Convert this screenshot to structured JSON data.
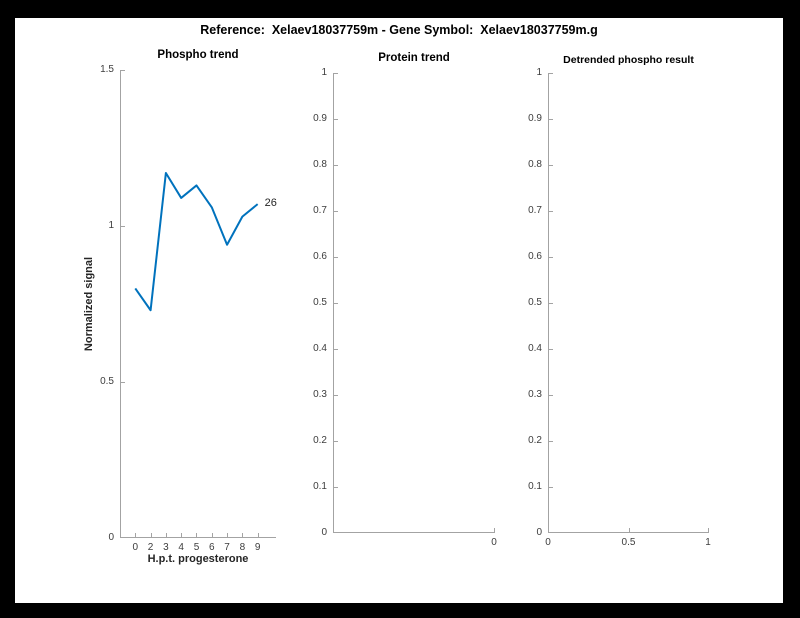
{
  "figure": {
    "title": "Reference:  Xelaev18037759m - Gene Symbol:  Xelaev18037759m.g",
    "background_color": "#ffffff",
    "frame_color": "#000000",
    "axis_color": "#a3a3a3",
    "tick_label_color": "#3d3d3d"
  },
  "chart_data": [
    {
      "type": "line",
      "title": "Phospho trend",
      "xlabel": "H.p.t. progesterone",
      "ylabel": "Normalized signal",
      "x": [
        1,
        2,
        3,
        4,
        5,
        6,
        7,
        8,
        9
      ],
      "xtick_labels": [
        "0",
        "2",
        "3",
        "4",
        "5",
        "6",
        "7",
        "8",
        "9"
      ],
      "values": [
        0.8,
        0.73,
        1.17,
        1.09,
        1.13,
        1.06,
        0.94,
        1.03,
        1.07
      ],
      "xlim": [
        0,
        10.2
      ],
      "ylim": [
        0,
        1.5
      ],
      "yticks": [
        0,
        0.5,
        1,
        1.5
      ],
      "ytick_labels": [
        "0",
        "0.5",
        "1",
        "1.5"
      ],
      "line_color": "#0072BD",
      "grid": false,
      "legend": null,
      "annotation": {
        "text": "26"
      }
    },
    {
      "type": "line",
      "title": "Protein trend",
      "xlabel": "",
      "ylabel": "",
      "x": [],
      "values": [],
      "xlim": [
        -1,
        0
      ],
      "xticks": [
        0
      ],
      "xtick_labels": [
        "0"
      ],
      "ylim": [
        0,
        1
      ],
      "yticks": [
        0,
        0.1,
        0.2,
        0.3,
        0.4,
        0.5,
        0.6,
        0.7,
        0.8,
        0.9,
        1
      ],
      "ytick_labels": [
        "0",
        "0.1",
        "0.2",
        "0.3",
        "0.4",
        "0.5",
        "0.6",
        "0.7",
        "0.8",
        "0.9",
        "1"
      ],
      "grid": false,
      "legend": null
    },
    {
      "type": "line",
      "title": "Detrended phospho result",
      "xlabel": "",
      "ylabel": "",
      "x": [],
      "values": [],
      "xlim": [
        0,
        1
      ],
      "xticks": [
        0,
        0.5,
        1
      ],
      "xtick_labels": [
        "0",
        "0.5",
        "1"
      ],
      "ylim": [
        0,
        1
      ],
      "yticks": [
        0,
        0.1,
        0.2,
        0.3,
        0.4,
        0.5,
        0.6,
        0.7,
        0.8,
        0.9,
        1
      ],
      "ytick_labels": [
        "0",
        "0.1",
        "0.2",
        "0.3",
        "0.4",
        "0.5",
        "0.6",
        "0.7",
        "0.8",
        "0.9",
        "1"
      ],
      "grid": false,
      "legend": null
    }
  ]
}
